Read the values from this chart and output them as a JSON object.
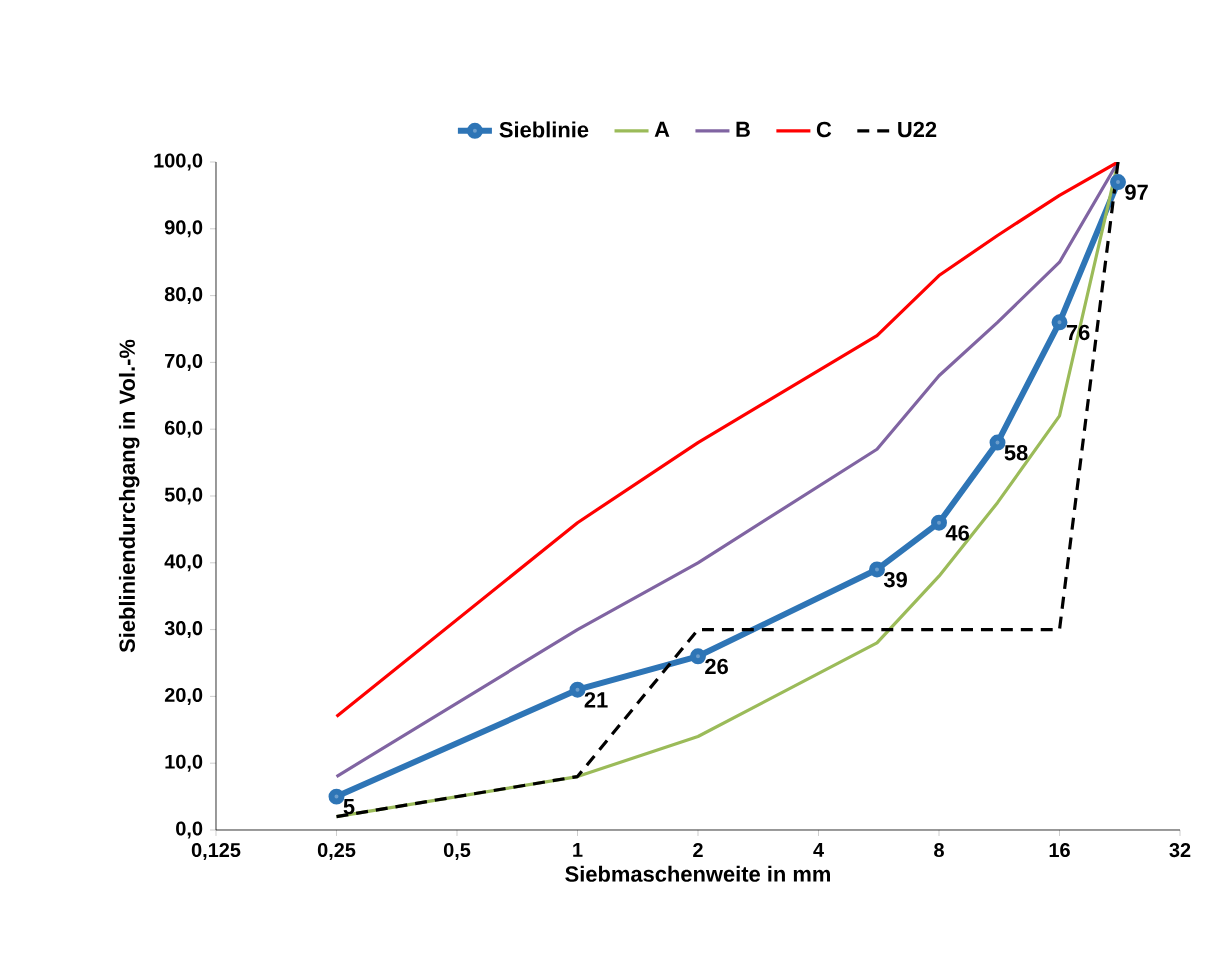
{
  "chart_data": {
    "type": "line",
    "xlabel": "Siebmaschenweite in mm",
    "ylabel": "Siebliniendurchgang in Vol.-%",
    "log": "x",
    "legend": "top",
    "grid": false,
    "xlim": [
      0.125,
      32
    ],
    "ylim": [
      0,
      100
    ],
    "xticks": [
      {
        "value": 0.125,
        "label": "0,125"
      },
      {
        "value": 0.25,
        "label": "0,25"
      },
      {
        "value": 0.5,
        "label": "0,5"
      },
      1,
      2,
      4,
      8,
      16,
      32
    ],
    "yticks": [
      {
        "value": 0,
        "label": "0,0"
      },
      {
        "value": 10,
        "label": "10,0"
      },
      {
        "value": 20,
        "label": "20,0"
      },
      {
        "value": 30,
        "label": "30,0"
      },
      {
        "value": 40,
        "label": "40,0"
      },
      {
        "value": 50,
        "label": "50,0"
      },
      {
        "value": 60,
        "label": "60,0"
      },
      {
        "value": 70,
        "label": "70,0"
      },
      {
        "value": 80,
        "label": "80,0"
      },
      {
        "value": 90,
        "label": "90,0"
      },
      {
        "value": 100,
        "label": "100,0"
      }
    ],
    "series": [
      {
        "name": "Sieblinie",
        "color": "#2e75b6",
        "marker": "circle",
        "data_labels": true,
        "x": [
          0.25,
          1,
          2,
          5.6,
          8,
          11.2,
          16,
          22.4
        ],
        "values": [
          5,
          21,
          26,
          39,
          46,
          58,
          76,
          97
        ]
      },
      {
        "name": "A",
        "color": "#9bbb59",
        "x": [
          0.25,
          1,
          2,
          5.6,
          8,
          11.2,
          16,
          22.4
        ],
        "values": [
          2,
          8,
          14,
          28,
          38,
          49,
          62,
          100
        ]
      },
      {
        "name": "B",
        "color": "#8064a2",
        "x": [
          0.25,
          1,
          2,
          5.6,
          8,
          11.2,
          16,
          22.4
        ],
        "values": [
          8,
          30,
          40,
          57,
          68,
          76,
          85,
          100
        ]
      },
      {
        "name": "C",
        "color": "#ff0000",
        "x": [
          0.25,
          1,
          2,
          5.6,
          8,
          11.2,
          16,
          22.4
        ],
        "values": [
          17,
          46,
          58,
          74,
          83,
          89,
          95,
          100
        ]
      },
      {
        "name": "U22",
        "color": "#000000",
        "line_style": "dashed",
        "x": [
          0.25,
          1,
          2,
          16,
          22.4
        ],
        "values": [
          2,
          8,
          30,
          30,
          100
        ]
      }
    ]
  }
}
